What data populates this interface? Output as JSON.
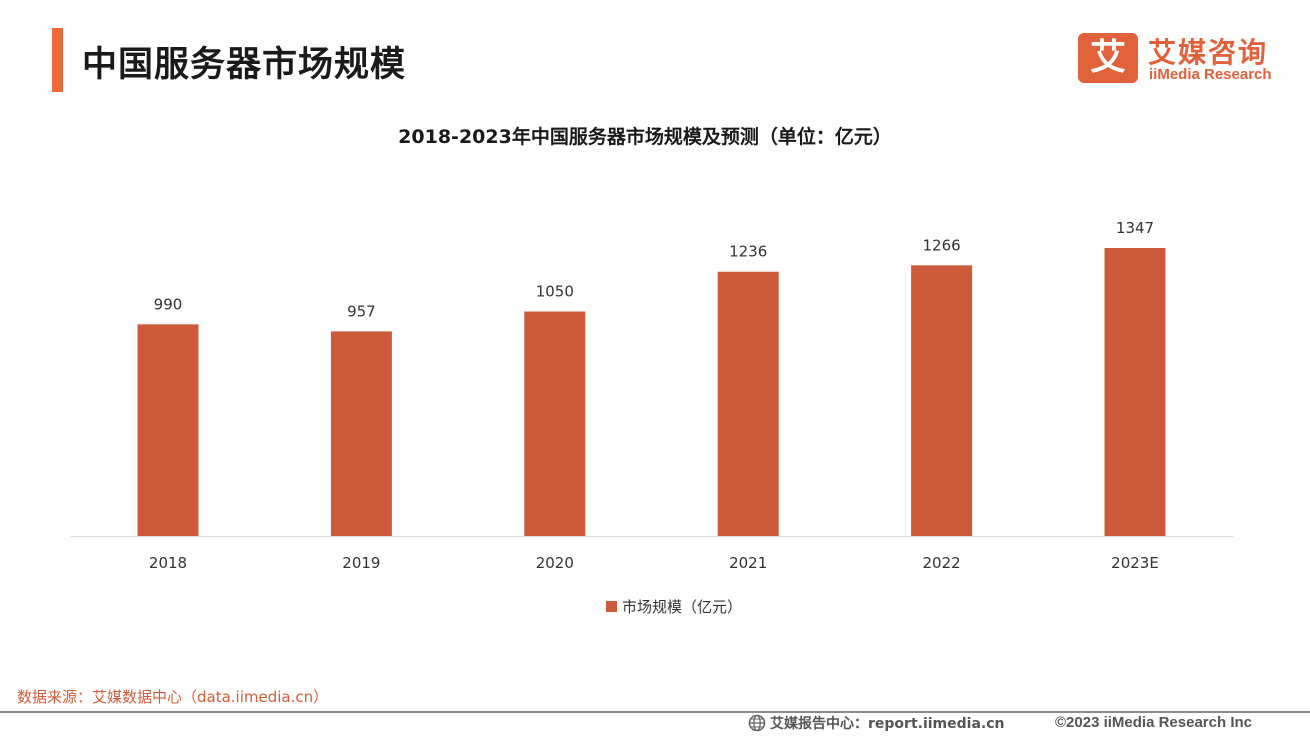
{
  "page": {
    "title": "中国服务器市场规模"
  },
  "logo": {
    "mark_glyph": "艾",
    "cn": "艾媒咨询",
    "en": "iiMedia Research"
  },
  "chart_data": {
    "type": "bar",
    "title": "2018-2023年中国服务器市场规模及预测（单位：亿元）",
    "categories": [
      "2018",
      "2019",
      "2020",
      "2021",
      "2022",
      "2023E"
    ],
    "series": [
      {
        "name": "市场规模（亿元）",
        "values": [
          990,
          957,
          1050,
          1236,
          1266,
          1347
        ]
      }
    ],
    "ylim": [
      0,
      1347
    ],
    "grid": false,
    "legend": "bottom",
    "color": "#cd5b3b"
  },
  "footer": {
    "source": "数据来源：艾媒数据中心（data.iimedia.cn）",
    "report": "艾媒报告中心：report.iimedia.cn",
    "copyright": "©2023  iiMedia Research  Inc"
  }
}
